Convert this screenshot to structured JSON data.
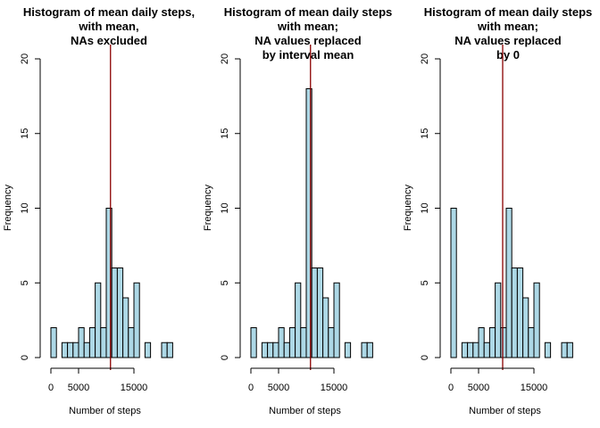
{
  "chart_data": [
    {
      "type": "bar",
      "title": [
        "Histogram of mean daily steps,",
        "with mean,",
        "NAs excluded"
      ],
      "xlabel": "Number of steps",
      "ylabel": "Frequency",
      "bin_width": 1000,
      "x_start": 0,
      "values": [
        2,
        0,
        1,
        1,
        1,
        2,
        1,
        2,
        5,
        2,
        10,
        6,
        6,
        4,
        2,
        5,
        0,
        1,
        0,
        0,
        1,
        1
      ],
      "mean_line": 10766,
      "ylim": [
        0,
        20
      ],
      "x_ticks": [
        0,
        5000,
        15000
      ],
      "x_tick_labels": [
        "0",
        "5000",
        "15000"
      ],
      "y_ticks": [
        0,
        5,
        10,
        15,
        20
      ],
      "y_tick_labels": [
        "0",
        "5",
        "10",
        "15",
        "20"
      ],
      "bar_color": "#ADD8E6",
      "mean_color": "#8B0000",
      "grid": false
    },
    {
      "type": "bar",
      "title": [
        "Histogram of mean daily steps",
        "with mean;",
        "NA values replaced",
        "by interval mean"
      ],
      "xlabel": "Number of steps",
      "ylabel": "Frequency",
      "bin_width": 1000,
      "x_start": 0,
      "values": [
        2,
        0,
        1,
        1,
        1,
        2,
        1,
        2,
        5,
        2,
        18,
        6,
        6,
        4,
        2,
        5,
        0,
        1,
        0,
        0,
        1,
        1
      ],
      "mean_line": 10766,
      "ylim": [
        0,
        20
      ],
      "x_ticks": [
        0,
        5000,
        15000
      ],
      "x_tick_labels": [
        "0",
        "5000",
        "15000"
      ],
      "y_ticks": [
        0,
        5,
        10,
        15,
        20
      ],
      "y_tick_labels": [
        "0",
        "5",
        "10",
        "15",
        "20"
      ],
      "bar_color": "#ADD8E6",
      "mean_color": "#8B0000",
      "grid": false
    },
    {
      "type": "bar",
      "title": [
        "Histogram of mean daily steps",
        "with mean;",
        "NA values replaced",
        "by 0"
      ],
      "xlabel": "Number of steps",
      "ylabel": "Frequency",
      "bin_width": 1000,
      "x_start": 0,
      "values": [
        10,
        0,
        1,
        1,
        1,
        2,
        1,
        2,
        5,
        2,
        10,
        6,
        6,
        4,
        2,
        5,
        0,
        1,
        0,
        0,
        1,
        1
      ],
      "mean_line": 9354,
      "ylim": [
        0,
        20
      ],
      "x_ticks": [
        0,
        5000,
        15000
      ],
      "x_tick_labels": [
        "0",
        "5000",
        "15000"
      ],
      "y_ticks": [
        0,
        5,
        10,
        15,
        20
      ],
      "y_tick_labels": [
        "0",
        "5",
        "10",
        "15",
        "20"
      ],
      "bar_color": "#ADD8E6",
      "mean_color": "#8B0000",
      "grid": false
    }
  ]
}
